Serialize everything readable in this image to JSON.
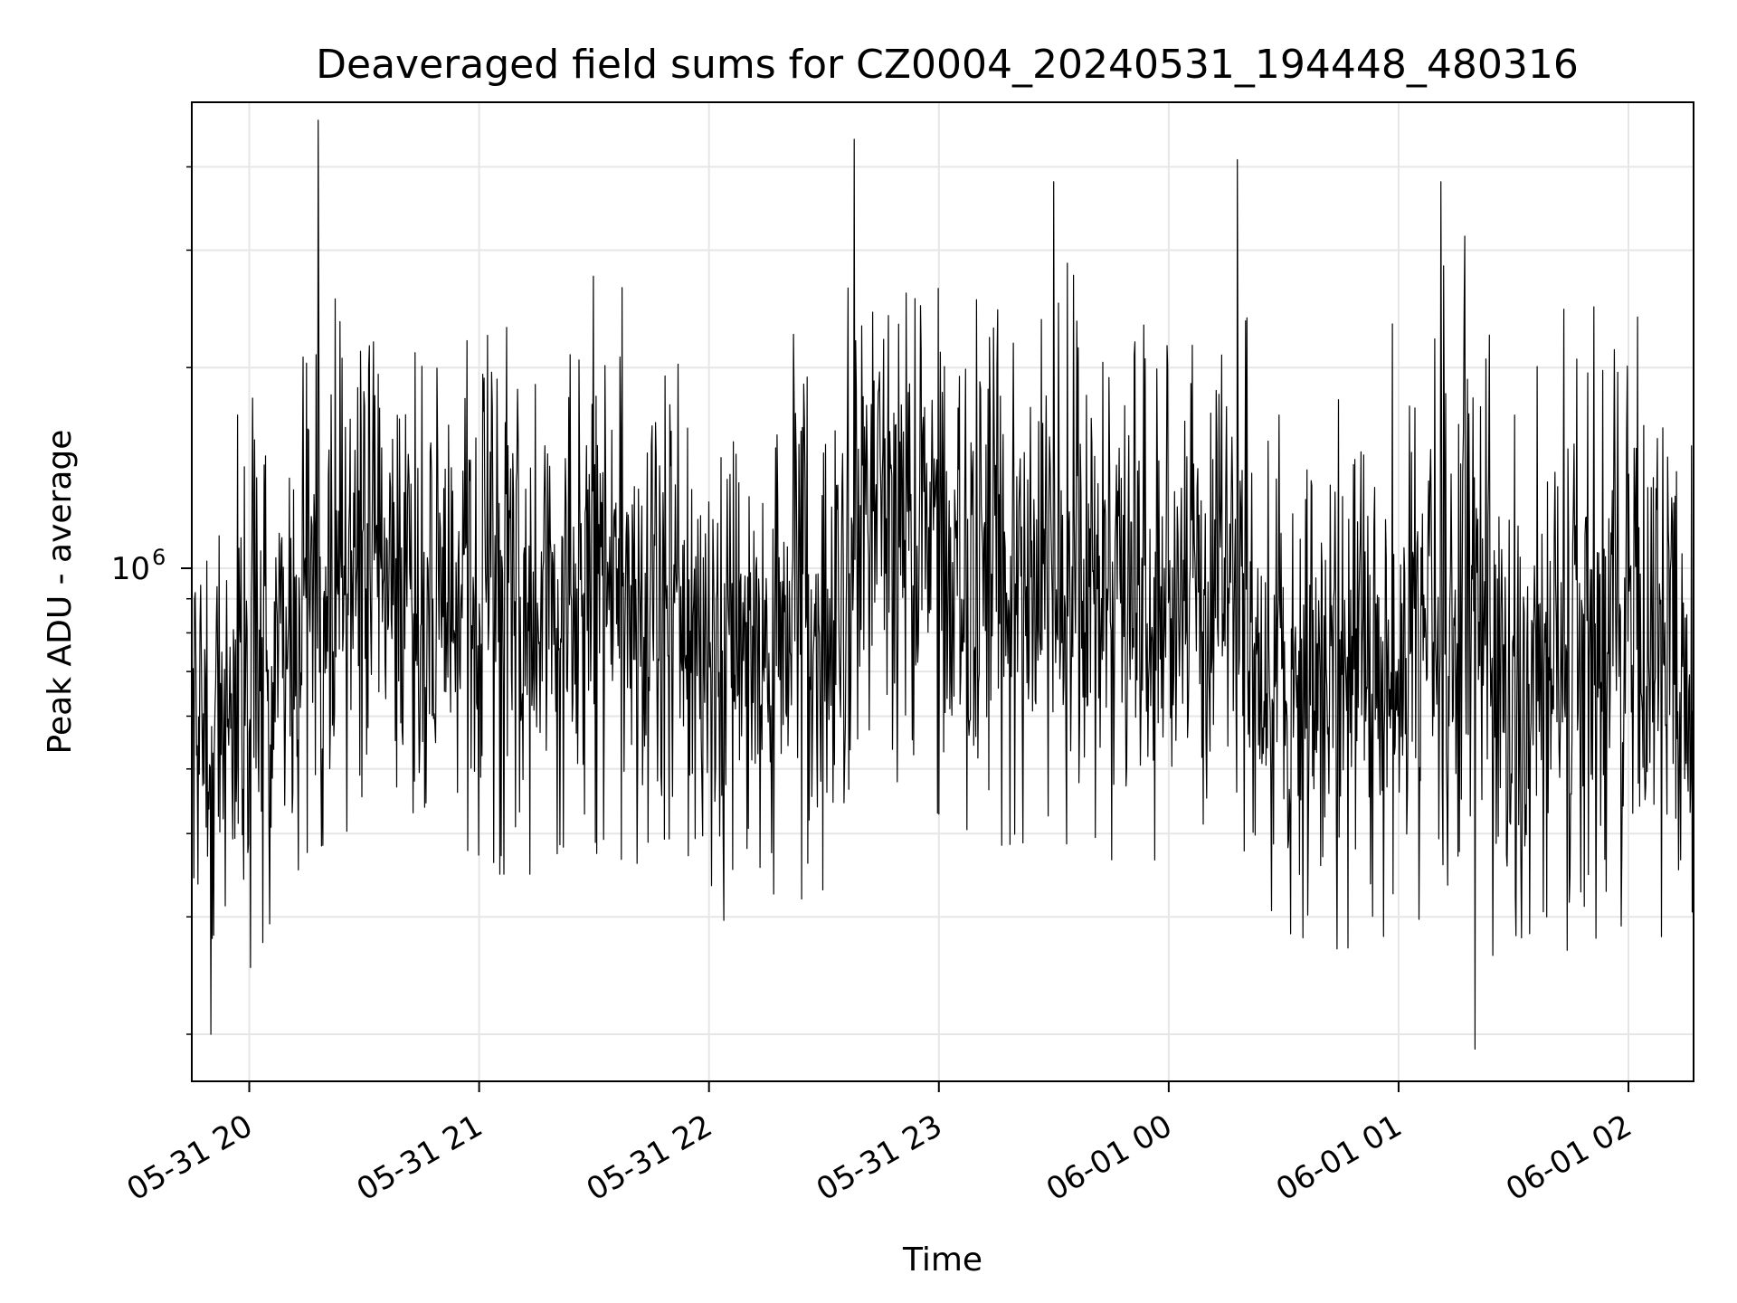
{
  "chart_data": {
    "type": "line",
    "title": "Deaveraged field sums for CZ0004_20240531_194448_480316",
    "xlabel": "Time",
    "ylabel": "Peak ADU - average",
    "y_scale": "log",
    "grid": true,
    "grid_color": "#e6e6e6",
    "line_color": "#000000",
    "x_range": [
      "2024-05-31 19:45",
      "2024-06-01 02:17"
    ],
    "ylim": [
      170000,
      5000000
    ],
    "x_tick_labels": [
      "05-31 20",
      "05-31 21",
      "05-31 22",
      "05-31 23",
      "06-01 00",
      "06-01 01",
      "06-01 02"
    ],
    "x_tick_times": [
      "2024-05-31 20:00",
      "2024-05-31 21:00",
      "2024-05-31 22:00",
      "2024-05-31 23:00",
      "2024-06-01 00:00",
      "2024-06-01 01:00",
      "2024-06-01 02:00"
    ],
    "y_major_ticks": [
      {
        "value": 1000000,
        "base": "10",
        "exponent": "6"
      }
    ],
    "y_minor_ticks": [
      200000,
      300000,
      400000,
      500000,
      600000,
      700000,
      800000,
      900000,
      2000000,
      3000000,
      4000000
    ],
    "envelope": {
      "times": [
        "2024-05-31 19:45",
        "2024-05-31 20:00",
        "2024-05-31 20:15",
        "2024-05-31 20:30",
        "2024-05-31 20:45",
        "2024-05-31 21:00",
        "2024-05-31 21:15",
        "2024-05-31 21:30",
        "2024-05-31 21:45",
        "2024-05-31 22:00",
        "2024-05-31 22:15",
        "2024-05-31 22:30",
        "2024-05-31 22:45",
        "2024-05-31 23:00",
        "2024-05-31 23:15",
        "2024-05-31 23:30",
        "2024-05-31 23:45",
        "2024-06-01 00:00",
        "2024-06-01 00:15",
        "2024-06-01 00:30",
        "2024-06-01 00:45",
        "2024-06-01 01:00",
        "2024-06-01 01:15",
        "2024-06-01 01:30",
        "2024-06-01 01:45",
        "2024-06-01 02:00",
        "2024-06-01 02:17"
      ],
      "center": [
        580000,
        600000,
        900000,
        1050000,
        900000,
        870000,
        860000,
        1000000,
        880000,
        760000,
        760000,
        820000,
        1250000,
        1080000,
        1020000,
        1080000,
        920000,
        930000,
        1050000,
        700000,
        680000,
        720000,
        950000,
        600000,
        720000,
        760000,
        700000
      ],
      "low": [
        300000,
        280000,
        420000,
        460000,
        420000,
        390000,
        390000,
        420000,
        400000,
        330000,
        340000,
        370000,
        560000,
        480000,
        430000,
        440000,
        410000,
        400000,
        450000,
        320000,
        300000,
        320000,
        360000,
        250000,
        300000,
        330000,
        300000
      ],
      "high": [
        1500000,
        1550000,
        2800000,
        2600000,
        1800000,
        2000000,
        2100000,
        2500000,
        2200000,
        1600000,
        1700000,
        2400000,
        3200000,
        2700000,
        3000000,
        2800000,
        1900000,
        2200000,
        3100000,
        1500000,
        1600000,
        2300000,
        3400000,
        1500000,
        2300000,
        2200000,
        1700000
      ]
    },
    "notable_points": [
      {
        "t": "2024-05-31 20:18",
        "y": 4700000
      },
      {
        "t": "2024-05-31 22:38",
        "y": 4400000
      },
      {
        "t": "2024-05-31 23:30",
        "y": 3800000
      },
      {
        "t": "2024-06-01 00:18",
        "y": 4100000
      },
      {
        "t": "2024-06-01 01:11",
        "y": 3800000
      },
      {
        "t": "2024-05-31 19:50",
        "y": 200000
      },
      {
        "t": "2024-06-01 01:20",
        "y": 190000
      }
    ],
    "n_samples": 2200,
    "seed": 480316
  }
}
